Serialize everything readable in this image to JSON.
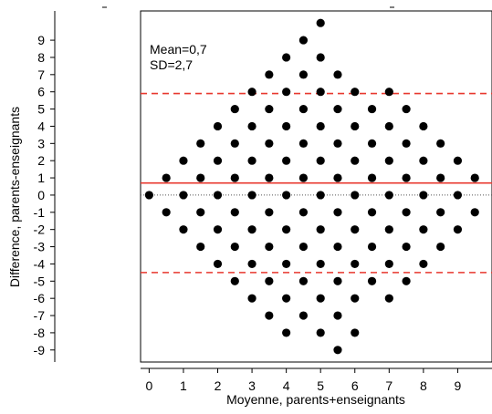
{
  "chart_data": {
    "type": "scatter",
    "title": "",
    "xlabel": "Moyenne, parents+enseignants",
    "ylabel": "Difference, parents-enseignants",
    "xlim": [
      -0.25,
      10
    ],
    "ylim": [
      -9.7,
      10.7
    ],
    "x_ticks": [
      "0",
      "1",
      "2",
      "3",
      "4",
      "5",
      "6",
      "7",
      "8",
      "9"
    ],
    "y_ticks": [
      "9",
      "8",
      "7",
      "6",
      "5",
      "4",
      "3",
      "2",
      "1",
      "0",
      "-1",
      "-2",
      "-3",
      "-4",
      "-5",
      "-6",
      "-7",
      "-8",
      "-9"
    ],
    "annotations": [
      "Mean=0,7",
      "SD=2,7"
    ],
    "reference_lines": {
      "mean": 0.7,
      "upper_limit": 5.9,
      "lower_limit": -4.5,
      "zero": 0
    },
    "colors": {
      "points": "#000000",
      "mean_line": "#e8382f",
      "limit_lines": "#e8382f",
      "zero_line": "#555555"
    },
    "grid": false,
    "legend": "none",
    "series": [
      {
        "points": [
          [
            0,
            0
          ],
          [
            0.5,
            1
          ],
          [
            0.5,
            -1
          ],
          [
            1,
            2
          ],
          [
            1,
            0
          ],
          [
            1,
            -2
          ],
          [
            1.5,
            3
          ],
          [
            1.5,
            1
          ],
          [
            1.5,
            -1
          ],
          [
            1.5,
            -3
          ],
          [
            2,
            4
          ],
          [
            2,
            2
          ],
          [
            2,
            0
          ],
          [
            2,
            -2
          ],
          [
            2,
            -4
          ],
          [
            2.5,
            5
          ],
          [
            2.5,
            3
          ],
          [
            2.5,
            1
          ],
          [
            2.5,
            -1
          ],
          [
            2.5,
            -3
          ],
          [
            2.5,
            -5
          ],
          [
            3,
            6
          ],
          [
            3,
            4
          ],
          [
            3,
            2
          ],
          [
            3,
            0
          ],
          [
            3,
            -2
          ],
          [
            3,
            -4
          ],
          [
            3,
            -6
          ],
          [
            3.5,
            7
          ],
          [
            3.5,
            5
          ],
          [
            3.5,
            3
          ],
          [
            3.5,
            1
          ],
          [
            3.5,
            -1
          ],
          [
            3.5,
            -3
          ],
          [
            3.5,
            -5
          ],
          [
            3.5,
            -7
          ],
          [
            4,
            8
          ],
          [
            4,
            6
          ],
          [
            4,
            4
          ],
          [
            4,
            2
          ],
          [
            4,
            0
          ],
          [
            4,
            -2
          ],
          [
            4,
            -4
          ],
          [
            4,
            -6
          ],
          [
            4,
            -8
          ],
          [
            4.5,
            9
          ],
          [
            4.5,
            7
          ],
          [
            4.5,
            5
          ],
          [
            4.5,
            3
          ],
          [
            4.5,
            1
          ],
          [
            4.5,
            -1
          ],
          [
            4.5,
            -3
          ],
          [
            4.5,
            -5
          ],
          [
            4.5,
            -7
          ],
          [
            5,
            10
          ],
          [
            5,
            8
          ],
          [
            5,
            6
          ],
          [
            5,
            4
          ],
          [
            5,
            2
          ],
          [
            5,
            0
          ],
          [
            5,
            -2
          ],
          [
            5,
            -4
          ],
          [
            5,
            -6
          ],
          [
            5,
            -8
          ],
          [
            5.5,
            7
          ],
          [
            5.5,
            5
          ],
          [
            5.5,
            3
          ],
          [
            5.5,
            1
          ],
          [
            5.5,
            -1
          ],
          [
            5.5,
            -3
          ],
          [
            5.5,
            -5
          ],
          [
            5.5,
            -7
          ],
          [
            5.5,
            -9
          ],
          [
            6,
            6
          ],
          [
            6,
            4
          ],
          [
            6,
            2
          ],
          [
            6,
            0
          ],
          [
            6,
            -2
          ],
          [
            6,
            -4
          ],
          [
            6,
            -6
          ],
          [
            6,
            -8
          ],
          [
            6.5,
            5
          ],
          [
            6.5,
            3
          ],
          [
            6.5,
            1
          ],
          [
            6.5,
            -1
          ],
          [
            6.5,
            -3
          ],
          [
            6.5,
            -5
          ],
          [
            7,
            6
          ],
          [
            7,
            4
          ],
          [
            7,
            2
          ],
          [
            7,
            0
          ],
          [
            7,
            -2
          ],
          [
            7,
            -4
          ],
          [
            7,
            -6
          ],
          [
            7.5,
            5
          ],
          [
            7.5,
            3
          ],
          [
            7.5,
            1
          ],
          [
            7.5,
            -1
          ],
          [
            7.5,
            -3
          ],
          [
            7.5,
            -5
          ],
          [
            8,
            4
          ],
          [
            8,
            2
          ],
          [
            8,
            0
          ],
          [
            8,
            -2
          ],
          [
            8,
            -4
          ],
          [
            8.5,
            3
          ],
          [
            8.5,
            1
          ],
          [
            8.5,
            -1
          ],
          [
            8.5,
            -3
          ],
          [
            9,
            2
          ],
          [
            9,
            0
          ],
          [
            9,
            -2
          ],
          [
            9.5,
            1
          ],
          [
            9.5,
            -1
          ]
        ]
      }
    ]
  }
}
